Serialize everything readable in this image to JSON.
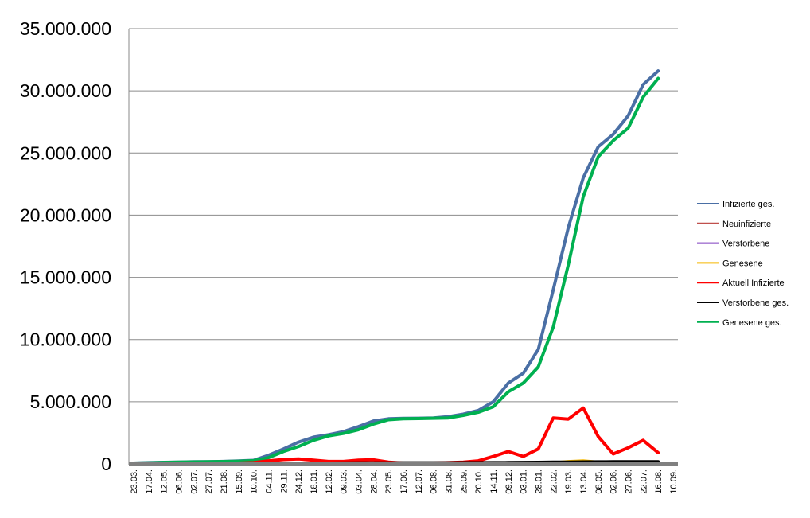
{
  "chart_data": {
    "type": "line",
    "title": "",
    "xlabel": "",
    "ylabel": "",
    "ylim": [
      0,
      35000000
    ],
    "yticks": [
      0,
      5000000,
      10000000,
      15000000,
      20000000,
      25000000,
      30000000,
      35000000
    ],
    "ytick_labels": [
      "0",
      "5.000.000",
      "10.000.000",
      "15.000.000",
      "20.000.000",
      "25.000.000",
      "30.000.000",
      "35.000.000"
    ],
    "x": [
      "23.03.",
      "17.04.",
      "12.05.",
      "06.06.",
      "02.07.",
      "27.07.",
      "21.08.",
      "15.09.",
      "10.10.",
      "04.11.",
      "29.11.",
      "24.12.",
      "18.01.",
      "12.02.",
      "09.03.",
      "03.04.",
      "28.04.",
      "23.05.",
      "17.06.",
      "12.07.",
      "06.08.",
      "31.08.",
      "25.09.",
      "20.10.",
      "14.11.",
      "09.12.",
      "03.01.",
      "28.01.",
      "22.02.",
      "19.03.",
      "13.04.",
      "08.05.",
      "02.06.",
      "27.06.",
      "22.07.",
      "16.08.",
      "10.09."
    ],
    "grid": true,
    "legend_position": "right",
    "series": [
      {
        "name": "Infizierte ges.",
        "color": "#4a6fa5",
        "values": [
          40000,
          100000,
          130000,
          150000,
          170000,
          180000,
          200000,
          240000,
          290000,
          700000,
          1200000,
          1750000,
          2150000,
          2350000,
          2600000,
          3000000,
          3450000,
          3630000,
          3660000,
          3670000,
          3700000,
          3800000,
          4000000,
          4300000,
          5000000,
          6500000,
          7300000,
          9200000,
          14000000,
          19000000,
          23000000,
          25500000,
          26500000,
          28000000,
          30500000,
          31600000,
          null
        ]
      },
      {
        "name": "Neuinfizierte",
        "color": "#c0504d",
        "values": [
          5000,
          5000,
          3000,
          2000,
          2000,
          2000,
          3000,
          5000,
          8000,
          20000,
          25000,
          25000,
          15000,
          10000,
          15000,
          20000,
          20000,
          10000,
          5000,
          5000,
          5000,
          8000,
          10000,
          20000,
          40000,
          60000,
          40000,
          60000,
          80000,
          120000,
          90000,
          50000,
          30000,
          30000,
          40000,
          30000,
          null
        ]
      },
      {
        "name": "Verstorbene",
        "color": "#7f3fbf",
        "values": [
          200,
          200,
          100,
          50,
          50,
          50,
          50,
          100,
          100,
          200,
          400,
          600,
          500,
          300,
          200,
          300,
          300,
          200,
          100,
          100,
          100,
          100,
          200,
          300,
          500,
          800,
          700,
          600,
          800,
          1200,
          1000,
          600,
          400,
          400,
          500,
          400,
          null
        ]
      },
      {
        "name": "Genesene",
        "color": "#f5b800",
        "values": [
          3000,
          4000,
          3000,
          2000,
          2000,
          2000,
          3000,
          4000,
          5000,
          15000,
          20000,
          25000,
          20000,
          12000,
          12000,
          15000,
          18000,
          15000,
          6000,
          5000,
          5000,
          6000,
          8000,
          12000,
          25000,
          45000,
          50000,
          60000,
          150000,
          250000,
          300000,
          200000,
          60000,
          40000,
          40000,
          50000,
          null
        ]
      },
      {
        "name": "Aktuell Infizierte",
        "color": "#ff0000",
        "values": [
          30000,
          60000,
          50000,
          40000,
          30000,
          20000,
          30000,
          60000,
          100000,
          250000,
          350000,
          400000,
          300000,
          200000,
          200000,
          300000,
          330000,
          150000,
          60000,
          40000,
          40000,
          100000,
          150000,
          250000,
          600000,
          1000000,
          600000,
          1200000,
          3700000,
          3600000,
          4500000,
          2200000,
          800000,
          1300000,
          1900000,
          900000,
          null
        ]
      },
      {
        "name": "Verstorbene ges.",
        "color": "#000000",
        "values": [
          1000,
          5000,
          8000,
          9000,
          9000,
          9200,
          9300,
          9400,
          9700,
          12000,
          20000,
          30000,
          45000,
          60000,
          70000,
          75000,
          80000,
          85000,
          88000,
          90000,
          91000,
          92000,
          93000,
          95000,
          100000,
          110000,
          120000,
          130000,
          140000,
          150000,
          160000,
          168000,
          172000,
          175000,
          178000,
          182000,
          null
        ]
      },
      {
        "name": "Genesene ges.",
        "color": "#00b050",
        "values": [
          5000,
          80000,
          120000,
          140000,
          160000,
          170000,
          190000,
          220000,
          260000,
          500000,
          1000000,
          1400000,
          1900000,
          2250000,
          2450000,
          2750000,
          3200000,
          3550000,
          3630000,
          3650000,
          3670000,
          3700000,
          3900000,
          4150000,
          4600000,
          5800000,
          6500000,
          7800000,
          11000000,
          16000000,
          21500000,
          24700000,
          26000000,
          27000000,
          29500000,
          31000000,
          null
        ]
      }
    ]
  }
}
